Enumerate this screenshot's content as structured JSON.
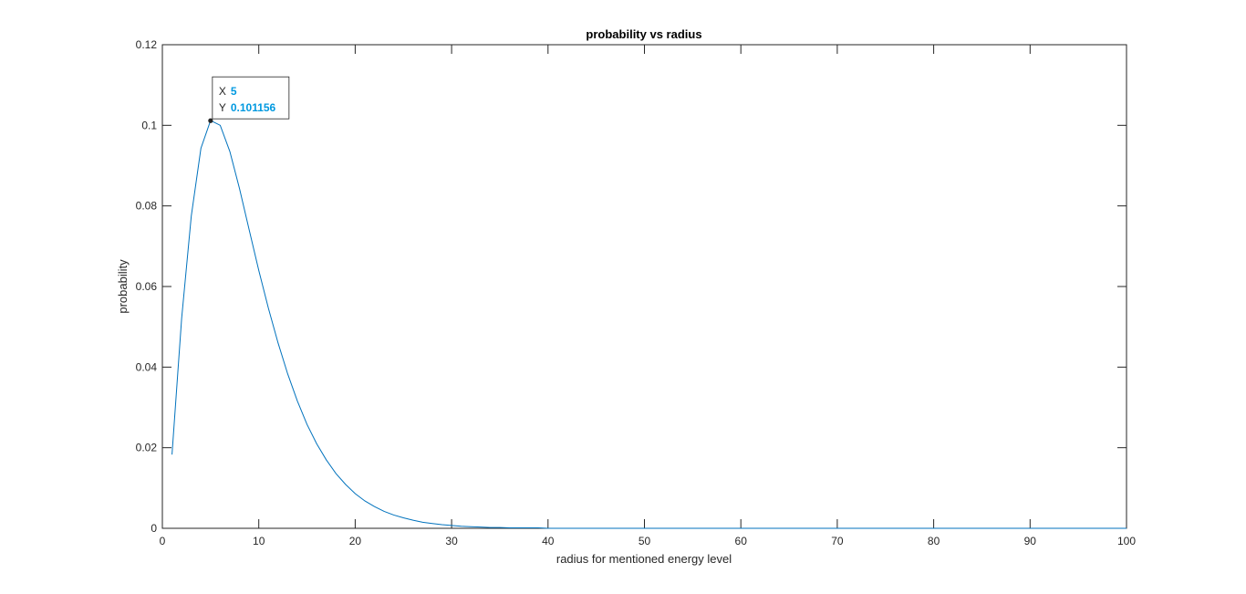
{
  "chart_data": {
    "type": "line",
    "title": "probability vs radius",
    "xlabel": "radius for mentioned energy level",
    "ylabel": "probability",
    "xlim": [
      0,
      100
    ],
    "ylim": [
      0,
      0.12
    ],
    "xticks": [
      0,
      10,
      20,
      30,
      40,
      50,
      60,
      70,
      80,
      90,
      100
    ],
    "yticks": [
      0,
      0.02,
      0.04,
      0.06,
      0.08,
      0.1,
      0.12
    ],
    "xtick_labels": [
      "0",
      "10",
      "20",
      "30",
      "40",
      "50",
      "60",
      "70",
      "80",
      "90",
      "100"
    ],
    "ytick_labels": [
      "0",
      "0.02",
      "0.04",
      "0.06",
      "0.08",
      "0.1",
      "0.12"
    ],
    "grid": false,
    "series": [
      {
        "color": "#0072bd",
        "x": [
          1,
          2,
          3,
          4,
          5,
          6,
          7,
          8,
          9,
          10,
          11,
          12,
          13,
          14,
          15,
          16,
          17,
          18,
          19,
          20,
          21,
          22,
          23,
          24,
          25,
          26,
          27,
          28,
          29,
          30,
          31,
          32,
          33,
          34,
          35,
          36,
          37,
          38,
          39,
          40,
          41,
          42,
          43,
          44,
          45,
          46,
          47,
          48,
          49,
          50,
          51,
          52,
          53,
          54,
          55,
          56,
          57,
          58,
          59,
          60,
          61,
          62,
          63,
          64,
          65,
          66,
          67,
          68,
          69,
          70,
          71,
          72,
          73,
          74,
          75,
          76,
          77,
          78,
          79,
          80,
          81,
          82,
          83,
          84,
          85,
          86,
          87,
          88,
          89,
          90,
          91,
          92,
          93,
          94,
          95,
          96,
          97,
          98,
          99,
          100
        ],
        "y": [
          0.0183,
          0.0521,
          0.0775,
          0.0943,
          0.1012,
          0.1,
          0.0935,
          0.0843,
          0.0741,
          0.064,
          0.0546,
          0.046,
          0.0383,
          0.0316,
          0.0258,
          0.021,
          0.017,
          0.0136,
          0.0109,
          0.0086,
          0.0068,
          0.0054,
          0.0042,
          0.0033,
          0.0026,
          0.002,
          0.0015,
          0.0012,
          0.0009,
          0.0007,
          0.0005,
          0.0004,
          0.0003,
          0.0002,
          0.0002,
          0.0001,
          0.0001,
          0.0001,
          0.0001,
          0,
          0,
          0,
          0,
          0,
          0,
          0,
          0,
          0,
          0,
          0,
          0,
          0,
          0,
          0,
          0,
          0,
          0,
          0,
          0,
          0,
          0,
          0,
          0,
          0,
          0,
          0,
          0,
          0,
          0,
          0,
          0,
          0,
          0,
          0,
          0,
          0,
          0,
          0,
          0,
          0,
          0,
          0,
          0,
          0,
          0,
          0,
          0,
          0,
          0,
          0,
          0,
          0,
          0,
          0,
          0,
          0,
          0,
          0,
          0,
          0
        ]
      }
    ],
    "datatip": {
      "x": 5,
      "y": 0.101156,
      "x_label": "X",
      "y_label": "Y",
      "x_text": "5",
      "y_text": "0.101156"
    }
  }
}
